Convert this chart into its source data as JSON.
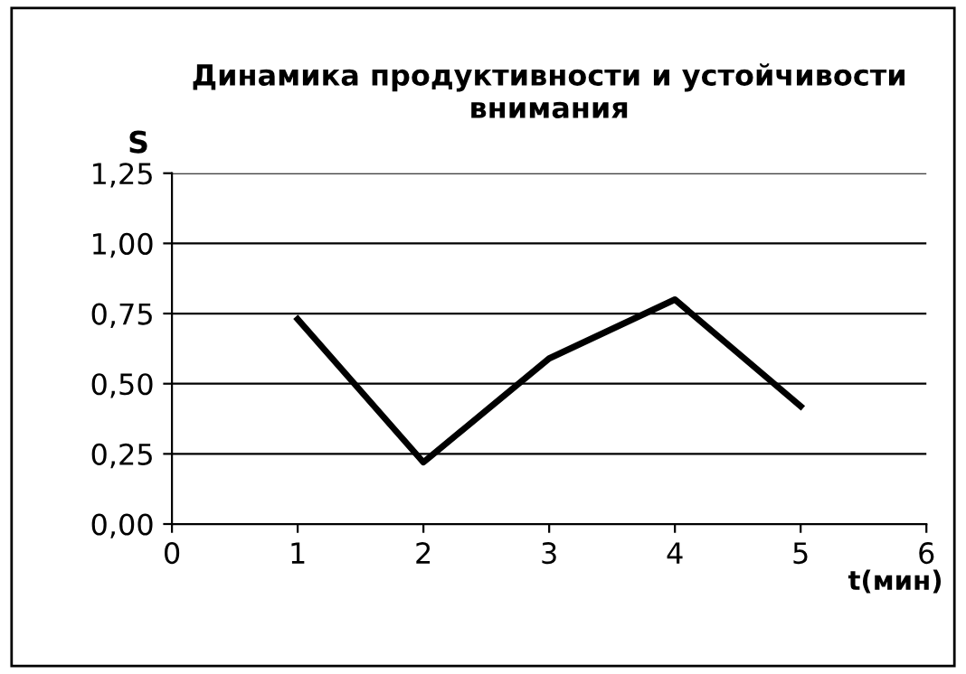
{
  "chart_data": {
    "type": "line",
    "title": "Динамика продуктивности и устойчивости\nвнимания",
    "xlabel": "t(мин)",
    "ylabel": "S",
    "x": [
      1,
      2,
      3,
      4,
      5
    ],
    "series": [
      {
        "color": "#000000",
        "values": [
          0.73,
          0.22,
          0.59,
          0.8,
          0.42
        ]
      }
    ],
    "xlim": [
      0,
      6
    ],
    "xticks": [
      0,
      1,
      2,
      3,
      4,
      5,
      6
    ],
    "ylim": [
      0,
      1.25
    ],
    "yticks": [
      {
        "value": 0,
        "label": "0,00"
      },
      {
        "value": 0.25,
        "label": "0,25"
      },
      {
        "value": 0.5,
        "label": "0,50"
      },
      {
        "value": 0.75,
        "label": "0,75"
      },
      {
        "value": 1.0,
        "label": "1,00"
      },
      {
        "value": 1.25,
        "label": "1,25"
      }
    ],
    "grid": "y",
    "legend": false,
    "marker": "none",
    "line_style": "solid"
  }
}
